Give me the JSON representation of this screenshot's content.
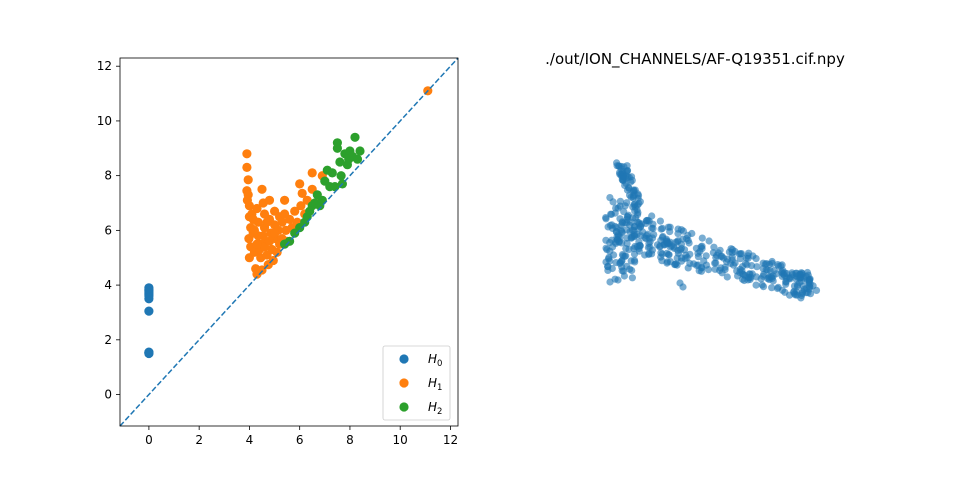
{
  "chart_data": [
    {
      "type": "scatter",
      "title": "",
      "xlabel": "",
      "ylabel": "",
      "xlim": [
        -1.15,
        12.3
      ],
      "ylim": [
        -1.15,
        12.3
      ],
      "xticks": [
        0,
        2,
        4,
        6,
        8,
        10,
        12
      ],
      "yticks": [
        0,
        2,
        4,
        6,
        8,
        10,
        12
      ],
      "grid": false,
      "legend_position": "lower-right",
      "diagonal": {
        "style": "dashed",
        "from": [
          -1.15,
          -1.15
        ],
        "to": [
          12.3,
          12.3
        ],
        "color": "#1f77b4"
      },
      "series": [
        {
          "name": "H0",
          "legend_base": "H",
          "legend_sub": "0",
          "color": "#1f77b4",
          "points": [
            [
              0,
              1.5
            ],
            [
              0,
              1.52
            ],
            [
              0,
              1.55
            ],
            [
              0,
              1.53
            ],
            [
              0,
              3.05
            ],
            [
              0,
              3.5
            ],
            [
              0,
              3.6
            ],
            [
              0,
              3.65
            ],
            [
              0,
              3.7
            ],
            [
              0,
              3.75
            ],
            [
              0,
              3.8
            ],
            [
              0,
              3.85
            ],
            [
              0,
              3.9
            ]
          ]
        },
        {
          "name": "H1",
          "legend_base": "H",
          "legend_sub": "1",
          "color": "#ff7f0e",
          "points": [
            [
              3.9,
              8.8
            ],
            [
              3.9,
              8.3
            ],
            [
              3.95,
              7.85
            ],
            [
              3.9,
              7.45
            ],
            [
              3.95,
              7.3
            ],
            [
              3.92,
              7.1
            ],
            [
              4.0,
              6.9
            ],
            [
              4.0,
              6.5
            ],
            [
              4.05,
              6.1
            ],
            [
              3.98,
              5.7
            ],
            [
              4.05,
              5.4
            ],
            [
              4.0,
              5.0
            ],
            [
              4.1,
              6.6
            ],
            [
              4.15,
              5.9
            ],
            [
              4.2,
              5.2
            ],
            [
              4.25,
              4.6
            ],
            [
              4.3,
              4.4
            ],
            [
              4.3,
              6.8
            ],
            [
              4.35,
              6.3
            ],
            [
              4.35,
              5.8
            ],
            [
              4.4,
              5.5
            ],
            [
              4.45,
              5.0
            ],
            [
              4.5,
              4.55
            ],
            [
              4.5,
              7.5
            ],
            [
              4.55,
              7.0
            ],
            [
              4.6,
              6.6
            ],
            [
              4.6,
              6.1
            ],
            [
              4.65,
              5.6
            ],
            [
              4.7,
              5.1
            ],
            [
              4.75,
              4.75
            ],
            [
              4.8,
              7.1
            ],
            [
              4.8,
              6.4
            ],
            [
              4.85,
              5.9
            ],
            [
              4.9,
              5.3
            ],
            [
              4.95,
              4.9
            ],
            [
              5.0,
              6.7
            ],
            [
              5.0,
              6.2
            ],
            [
              5.05,
              5.7
            ],
            [
              5.1,
              5.2
            ],
            [
              5.15,
              6.0
            ],
            [
              5.2,
              6.5
            ],
            [
              5.2,
              5.5
            ],
            [
              5.3,
              6.3
            ],
            [
              5.3,
              5.7
            ],
            [
              5.4,
              7.1
            ],
            [
              5.4,
              6.6
            ],
            [
              5.45,
              6.0
            ],
            [
              5.5,
              5.6
            ],
            [
              5.6,
              6.4
            ],
            [
              5.7,
              6.1
            ],
            [
              5.8,
              6.7
            ],
            [
              5.9,
              6.3
            ],
            [
              6.0,
              7.7
            ],
            [
              6.05,
              6.9
            ],
            [
              6.1,
              7.35
            ],
            [
              6.2,
              6.6
            ],
            [
              6.3,
              7.1
            ],
            [
              6.5,
              8.1
            ],
            [
              6.5,
              7.5
            ],
            [
              6.7,
              7.0
            ],
            [
              6.9,
              8.0
            ],
            [
              4.2,
              6.0
            ],
            [
              4.4,
              5.3
            ],
            [
              4.6,
              5.4
            ],
            [
              4.3,
              5.5
            ],
            [
              4.55,
              5.8
            ],
            [
              4.15,
              6.4
            ],
            [
              4.8,
              5.6
            ],
            [
              5.0,
              5.9
            ],
            [
              4.7,
              6.3
            ],
            [
              11.1,
              11.1
            ]
          ]
        },
        {
          "name": "H2",
          "legend_base": "H",
          "legend_sub": "2",
          "color": "#2ca02c",
          "points": [
            [
              5.4,
              5.5
            ],
            [
              5.6,
              5.6
            ],
            [
              5.8,
              5.9
            ],
            [
              6.0,
              6.1
            ],
            [
              6.2,
              6.3
            ],
            [
              6.3,
              6.5
            ],
            [
              6.4,
              6.7
            ],
            [
              6.5,
              6.9
            ],
            [
              6.6,
              7.0
            ],
            [
              6.7,
              7.3
            ],
            [
              6.9,
              7.1
            ],
            [
              7.0,
              7.8
            ],
            [
              7.2,
              7.6
            ],
            [
              7.3,
              8.1
            ],
            [
              7.5,
              9.2
            ],
            [
              7.5,
              9.0
            ],
            [
              7.6,
              8.5
            ],
            [
              7.7,
              7.7
            ],
            [
              7.8,
              8.8
            ],
            [
              7.9,
              8.4
            ],
            [
              8.0,
              8.9
            ],
            [
              8.1,
              8.7
            ],
            [
              8.2,
              9.4
            ],
            [
              8.3,
              8.6
            ],
            [
              8.4,
              8.9
            ],
            [
              7.4,
              7.6
            ],
            [
              6.8,
              6.9
            ],
            [
              7.1,
              8.2
            ],
            [
              7.65,
              8.0
            ],
            [
              7.95,
              8.6
            ]
          ]
        }
      ]
    },
    {
      "type": "scatter",
      "title": "./out/ION_CHANNELS/AF-Q19351.cif.npy",
      "xlabel": "",
      "ylabel": "",
      "axes_visible": false,
      "grid": false,
      "series": [
        {
          "name": "",
          "color": "#1f77b4",
          "alpha": 0.6,
          "points": []
        }
      ]
    }
  ]
}
